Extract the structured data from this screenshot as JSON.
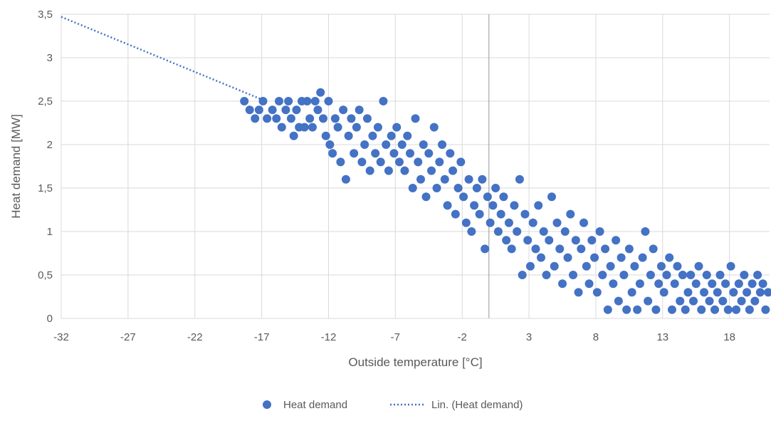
{
  "chart_data": {
    "type": "scatter",
    "title": "",
    "xlabel": "Outside temperature [°C]",
    "ylabel": "Heat demand [MW]",
    "xlim": [
      -32,
      21
    ],
    "ylim": [
      0,
      3.5
    ],
    "x_ticks": [
      -32,
      -27,
      -22,
      -17,
      -12,
      -7,
      -2,
      3,
      8,
      13,
      18
    ],
    "x_tick_labels": [
      "-32",
      "-27",
      "-22",
      "-17",
      "-12",
      "-7",
      "-2",
      "3",
      "8",
      "13",
      "18"
    ],
    "y_ticks": [
      0,
      0.5,
      1,
      1.5,
      2,
      2.5,
      3,
      3.5
    ],
    "y_tick_labels": [
      "0",
      "0,5",
      "1",
      "1,5",
      "2",
      "2,5",
      "3",
      "3,5"
    ],
    "vertical_axis_at_x": 0,
    "grid": true,
    "legend_position": "bottom",
    "series": [
      {
        "name": "Heat demand",
        "kind": "scatter",
        "color": "#4472C4",
        "points": [
          [
            -18.3,
            2.5
          ],
          [
            -17.9,
            2.4
          ],
          [
            -17.5,
            2.3
          ],
          [
            -17.2,
            2.4
          ],
          [
            -16.9,
            2.5
          ],
          [
            -16.6,
            2.3
          ],
          [
            -16.2,
            2.4
          ],
          [
            -15.9,
            2.3
          ],
          [
            -15.7,
            2.5
          ],
          [
            -15.5,
            2.2
          ],
          [
            -15.2,
            2.4
          ],
          [
            -15.0,
            2.5
          ],
          [
            -14.8,
            2.3
          ],
          [
            -14.6,
            2.1
          ],
          [
            -14.4,
            2.4
          ],
          [
            -14.2,
            2.2
          ],
          [
            -14.0,
            2.5
          ],
          [
            -13.8,
            2.2
          ],
          [
            -13.6,
            2.5
          ],
          [
            -13.4,
            2.3
          ],
          [
            -13.2,
            2.2
          ],
          [
            -13.0,
            2.5
          ],
          [
            -12.8,
            2.4
          ],
          [
            -12.6,
            2.6
          ],
          [
            -12.4,
            2.3
          ],
          [
            -12.2,
            2.1
          ],
          [
            -12.0,
            2.5
          ],
          [
            -11.9,
            2.0
          ],
          [
            -11.7,
            1.9
          ],
          [
            -11.5,
            2.3
          ],
          [
            -11.3,
            2.2
          ],
          [
            -11.1,
            1.8
          ],
          [
            -10.9,
            2.4
          ],
          [
            -10.7,
            1.6
          ],
          [
            -10.5,
            2.1
          ],
          [
            -10.3,
            2.3
          ],
          [
            -10.1,
            1.9
          ],
          [
            -9.9,
            2.2
          ],
          [
            -9.7,
            2.4
          ],
          [
            -9.5,
            1.8
          ],
          [
            -9.3,
            2.0
          ],
          [
            -9.1,
            2.3
          ],
          [
            -8.9,
            1.7
          ],
          [
            -8.7,
            2.1
          ],
          [
            -8.5,
            1.9
          ],
          [
            -8.3,
            2.2
          ],
          [
            -8.1,
            1.8
          ],
          [
            -7.9,
            2.5
          ],
          [
            -7.7,
            2.0
          ],
          [
            -7.5,
            1.7
          ],
          [
            -7.3,
            2.1
          ],
          [
            -7.1,
            1.9
          ],
          [
            -6.9,
            2.2
          ],
          [
            -6.7,
            1.8
          ],
          [
            -6.5,
            2.0
          ],
          [
            -6.3,
            1.7
          ],
          [
            -6.1,
            2.1
          ],
          [
            -5.9,
            1.9
          ],
          [
            -5.7,
            1.5
          ],
          [
            -5.5,
            2.3
          ],
          [
            -5.3,
            1.8
          ],
          [
            -5.1,
            1.6
          ],
          [
            -4.9,
            2.0
          ],
          [
            -4.7,
            1.4
          ],
          [
            -4.5,
            1.9
          ],
          [
            -4.3,
            1.7
          ],
          [
            -4.1,
            2.2
          ],
          [
            -3.9,
            1.5
          ],
          [
            -3.7,
            1.8
          ],
          [
            -3.5,
            2.0
          ],
          [
            -3.3,
            1.6
          ],
          [
            -3.1,
            1.3
          ],
          [
            -2.9,
            1.9
          ],
          [
            -2.7,
            1.7
          ],
          [
            -2.5,
            1.2
          ],
          [
            -2.3,
            1.5
          ],
          [
            -2.1,
            1.8
          ],
          [
            -1.9,
            1.4
          ],
          [
            -1.7,
            1.1
          ],
          [
            -1.5,
            1.6
          ],
          [
            -1.3,
            1.0
          ],
          [
            -1.1,
            1.3
          ],
          [
            -0.9,
            1.5
          ],
          [
            -0.7,
            1.2
          ],
          [
            -0.5,
            1.6
          ],
          [
            -0.3,
            0.8
          ],
          [
            -0.1,
            1.4
          ],
          [
            0.1,
            1.1
          ],
          [
            0.3,
            1.3
          ],
          [
            0.5,
            1.5
          ],
          [
            0.7,
            1.0
          ],
          [
            0.9,
            1.2
          ],
          [
            1.1,
            1.4
          ],
          [
            1.3,
            0.9
          ],
          [
            1.5,
            1.1
          ],
          [
            1.7,
            0.8
          ],
          [
            1.9,
            1.3
          ],
          [
            2.1,
            1.0
          ],
          [
            2.3,
            1.6
          ],
          [
            2.5,
            0.5
          ],
          [
            2.7,
            1.2
          ],
          [
            2.9,
            0.9
          ],
          [
            3.1,
            0.6
          ],
          [
            3.3,
            1.1
          ],
          [
            3.5,
            0.8
          ],
          [
            3.7,
            1.3
          ],
          [
            3.9,
            0.7
          ],
          [
            4.1,
            1.0
          ],
          [
            4.3,
            0.5
          ],
          [
            4.5,
            0.9
          ],
          [
            4.7,
            1.4
          ],
          [
            4.9,
            0.6
          ],
          [
            5.1,
            1.1
          ],
          [
            5.3,
            0.8
          ],
          [
            5.5,
            0.4
          ],
          [
            5.7,
            1.0
          ],
          [
            5.9,
            0.7
          ],
          [
            6.1,
            1.2
          ],
          [
            6.3,
            0.5
          ],
          [
            6.5,
            0.9
          ],
          [
            6.7,
            0.3
          ],
          [
            6.9,
            0.8
          ],
          [
            7.1,
            1.1
          ],
          [
            7.3,
            0.6
          ],
          [
            7.5,
            0.4
          ],
          [
            7.7,
            0.9
          ],
          [
            7.9,
            0.7
          ],
          [
            8.1,
            0.3
          ],
          [
            8.3,
            1.0
          ],
          [
            8.5,
            0.5
          ],
          [
            8.7,
            0.8
          ],
          [
            8.9,
            0.1
          ],
          [
            9.1,
            0.6
          ],
          [
            9.3,
            0.4
          ],
          [
            9.5,
            0.9
          ],
          [
            9.7,
            0.2
          ],
          [
            9.9,
            0.7
          ],
          [
            10.1,
            0.5
          ],
          [
            10.3,
            0.1
          ],
          [
            10.5,
            0.8
          ],
          [
            10.7,
            0.3
          ],
          [
            10.9,
            0.6
          ],
          [
            11.1,
            0.1
          ],
          [
            11.3,
            0.4
          ],
          [
            11.5,
            0.7
          ],
          [
            11.7,
            1.0
          ],
          [
            11.9,
            0.2
          ],
          [
            12.1,
            0.5
          ],
          [
            12.3,
            0.8
          ],
          [
            12.5,
            0.1
          ],
          [
            12.7,
            0.4
          ],
          [
            12.9,
            0.6
          ],
          [
            13.1,
            0.3
          ],
          [
            13.3,
            0.5
          ],
          [
            13.5,
            0.7
          ],
          [
            13.7,
            0.1
          ],
          [
            13.9,
            0.4
          ],
          [
            14.1,
            0.6
          ],
          [
            14.3,
            0.2
          ],
          [
            14.5,
            0.5
          ],
          [
            14.7,
            0.1
          ],
          [
            14.9,
            0.3
          ],
          [
            15.1,
            0.5
          ],
          [
            15.3,
            0.2
          ],
          [
            15.5,
            0.4
          ],
          [
            15.7,
            0.6
          ],
          [
            15.9,
            0.1
          ],
          [
            16.1,
            0.3
          ],
          [
            16.3,
            0.5
          ],
          [
            16.5,
            0.2
          ],
          [
            16.7,
            0.4
          ],
          [
            16.9,
            0.1
          ],
          [
            17.1,
            0.3
          ],
          [
            17.3,
            0.5
          ],
          [
            17.5,
            0.2
          ],
          [
            17.7,
            0.4
          ],
          [
            17.9,
            0.1
          ],
          [
            18.1,
            0.6
          ],
          [
            18.3,
            0.3
          ],
          [
            18.5,
            0.1
          ],
          [
            18.7,
            0.4
          ],
          [
            18.9,
            0.2
          ],
          [
            19.1,
            0.5
          ],
          [
            19.3,
            0.3
          ],
          [
            19.5,
            0.1
          ],
          [
            19.7,
            0.4
          ],
          [
            19.9,
            0.2
          ],
          [
            20.1,
            0.5
          ],
          [
            20.3,
            0.3
          ],
          [
            20.5,
            0.4
          ],
          [
            20.7,
            0.1
          ],
          [
            20.9,
            0.3
          ]
        ]
      },
      {
        "name": "Lin. (Heat demand)",
        "kind": "trendline",
        "color": "#4472C4",
        "line_style": "dotted",
        "points": [
          [
            -32,
            3.47
          ],
          [
            -17,
            2.52
          ]
        ]
      }
    ]
  }
}
